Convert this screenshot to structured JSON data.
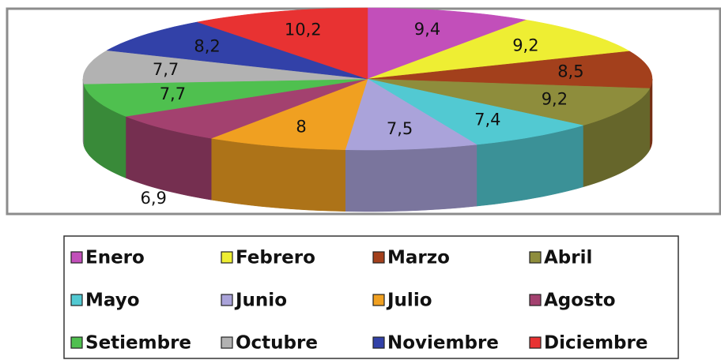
{
  "chart_data": {
    "type": "pie",
    "categories": [
      "Enero",
      "Febrero",
      "Marzo",
      "Abril",
      "Mayo",
      "Junio",
      "Julio",
      "Agosto",
      "Setiembre",
      "Octubre",
      "Noviembre",
      "Diciembre"
    ],
    "values": [
      9.4,
      9.2,
      8.5,
      9.2,
      7.4,
      7.5,
      8,
      6.9,
      7.7,
      7.7,
      8.2,
      10.2
    ],
    "value_labels": [
      "9,4",
      "9,2",
      "8,5",
      "9,2",
      "7,4",
      "7,5",
      "8",
      "6,9",
      "7,7",
      "7,7",
      "8,2",
      "10,2"
    ],
    "colors": [
      "#c24fba",
      "#eeee33",
      "#a3401c",
      "#8e8d3c",
      "#52c9d2",
      "#aaa3da",
      "#f0a021",
      "#a3416f",
      "#4fc04f",
      "#b2b2b2",
      "#3241a8",
      "#e83232"
    ],
    "legend": "bottom"
  }
}
